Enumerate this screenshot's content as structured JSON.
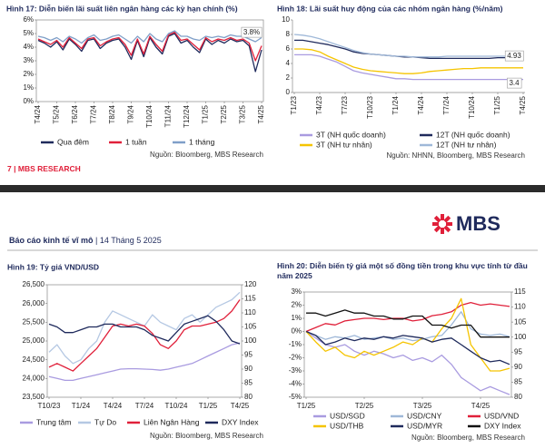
{
  "footer": {
    "page": "7",
    "separator": "|",
    "brand": "MBS RESEARCH"
  },
  "header": {
    "logo": "MBS",
    "report": "Báo cáo kinh tế vĩ mô",
    "separator": "|",
    "date": "14 Tháng 5 2025"
  },
  "chart_data": [
    {
      "type": "line",
      "title": "Hình 17: Diễn biến lãi suất liên ngân hàng các kỳ hạn chính (%)",
      "categories": [
        "T4/24",
        null,
        null,
        "T5/24",
        null,
        null,
        "T6/24",
        null,
        null,
        "T7/24",
        null,
        null,
        "T8/24",
        null,
        null,
        "T9/24",
        null,
        null,
        "T10/24",
        null,
        null,
        "T11/24",
        null,
        null,
        "T12/24",
        null,
        null,
        "T1/25",
        null,
        null,
        "T2/25",
        null,
        null,
        "T3/25",
        null,
        null,
        "T4/25"
      ],
      "ylim": [
        0,
        6
      ],
      "yticks": [
        {
          "value": 0,
          "label": "0%"
        },
        {
          "value": 1,
          "label": "1%"
        },
        {
          "value": 2,
          "label": "2%"
        },
        {
          "value": 3,
          "label": "3%"
        },
        {
          "value": 4,
          "label": "4%"
        },
        {
          "value": 5,
          "label": "5%"
        },
        {
          "value": 6,
          "label": "6%"
        }
      ],
      "series": [
        {
          "name": "Qua đêm",
          "color": "#1f2a5c",
          "values": [
            4.5,
            4.3,
            4.0,
            4.4,
            3.8,
            4.6,
            4.2,
            3.7,
            4.5,
            4.6,
            3.9,
            4.3,
            4.5,
            4.6,
            4.0,
            3.1,
            4.5,
            3.3,
            4.7,
            4.0,
            3.5,
            4.8,
            5.0,
            4.3,
            4.5,
            4.0,
            3.6,
            4.6,
            4.2,
            4.5,
            4.3,
            4.6,
            4.4,
            4.5,
            4.1,
            2.2,
            3.8
          ]
        },
        {
          "name": "1 tuần",
          "color": "#e0203a",
          "values": [
            4.6,
            4.4,
            4.2,
            4.5,
            4.0,
            4.7,
            4.3,
            3.9,
            4.6,
            4.7,
            4.1,
            4.4,
            4.6,
            4.7,
            4.2,
            3.4,
            4.6,
            3.5,
            4.8,
            4.2,
            3.7,
            4.9,
            5.1,
            4.5,
            4.6,
            4.2,
            3.8,
            4.7,
            4.4,
            4.6,
            4.5,
            4.7,
            4.5,
            4.6,
            4.3,
            3.0,
            4.1
          ]
        },
        {
          "name": "1 tháng",
          "color": "#7f9fc8",
          "values": [
            4.8,
            4.7,
            4.5,
            4.7,
            4.4,
            4.8,
            4.6,
            4.3,
            4.7,
            4.9,
            4.5,
            4.6,
            4.8,
            4.9,
            4.6,
            4.3,
            4.8,
            4.4,
            5.0,
            4.6,
            4.4,
            5.0,
            5.2,
            4.8,
            4.8,
            4.6,
            4.5,
            4.8,
            4.7,
            4.8,
            4.7,
            4.9,
            4.8,
            4.8,
            4.6,
            4.4,
            4.7
          ]
        }
      ],
      "annotations": [
        "3.8%"
      ],
      "source": "Nguồn: Bloomberg, MBS Research",
      "grid": false
    },
    {
      "type": "line",
      "title": "Hình 18: Lãi suất huy động của các nhóm ngân hàng (%/năm)",
      "categories": [
        "T1/23",
        null,
        null,
        "T4/23",
        null,
        null,
        "T7/23",
        null,
        null,
        "T10/23",
        null,
        null,
        "T1/24",
        null,
        null,
        "T4/24",
        null,
        null,
        "T7/24",
        null,
        null,
        "T10/24",
        null,
        null,
        "T1/25",
        null,
        null,
        "T4/25"
      ],
      "ylim": [
        0,
        10
      ],
      "yticks": [
        0,
        2,
        4,
        6,
        8,
        10
      ],
      "series": [
        {
          "name": "3T (NH quốc doanh)",
          "color": "#a99be0",
          "values": [
            5.2,
            5.2,
            5.2,
            5.0,
            4.6,
            4.2,
            3.6,
            3.0,
            2.7,
            2.5,
            2.3,
            2.1,
            1.9,
            1.9,
            1.8,
            1.8,
            1.8,
            1.8,
            1.8,
            1.8,
            1.8,
            1.8,
            1.8,
            1.8,
            1.8,
            1.8,
            1.8,
            1.8
          ]
        },
        {
          "name": "12T (NH quốc doanh)",
          "color": "#1f2a5c",
          "values": [
            7.2,
            7.2,
            7.0,
            6.8,
            6.6,
            6.3,
            6.0,
            5.6,
            5.4,
            5.3,
            5.2,
            5.1,
            5.0,
            4.9,
            4.9,
            4.8,
            4.7,
            4.7,
            4.7,
            4.7,
            4.7,
            4.7,
            4.7,
            4.7,
            4.8,
            4.8,
            4.9,
            4.93
          ]
        },
        {
          "name": "3T (NH tư nhân)",
          "color": "#f5c400",
          "values": [
            6.0,
            6.0,
            5.9,
            5.6,
            5.0,
            4.5,
            4.0,
            3.5,
            3.2,
            3.0,
            2.9,
            2.8,
            2.7,
            2.6,
            2.6,
            2.7,
            2.9,
            3.0,
            3.1,
            3.2,
            3.3,
            3.3,
            3.4,
            3.4,
            3.4,
            3.4,
            3.4,
            3.4
          ]
        },
        {
          "name": "12T (NH tư nhân)",
          "color": "#9fb8d8",
          "values": [
            8.0,
            7.9,
            7.7,
            7.4,
            7.0,
            6.6,
            6.2,
            5.8,
            5.5,
            5.3,
            5.2,
            5.1,
            5.0,
            5.0,
            4.9,
            4.9,
            4.9,
            4.9,
            5.0,
            5.0,
            5.0,
            5.0,
            5.0,
            5.0,
            5.0,
            5.0,
            5.0,
            5.0
          ]
        }
      ],
      "annotations": [
        "4.93",
        "3.4"
      ],
      "source": "Nguồn: NHNN, Bloomberg, MBS Research",
      "grid": false
    },
    {
      "type": "line",
      "title": "Hình 19: Tỷ giá VND/USD",
      "categories": [
        "T10/23",
        null,
        null,
        null,
        "T1/24",
        null,
        null,
        null,
        "T4/24",
        null,
        null,
        null,
        "T7/24",
        null,
        null,
        null,
        "T10/24",
        null,
        null,
        null,
        "T1/25",
        null,
        null,
        null,
        "T4/25"
      ],
      "ylim": [
        23500,
        26500
      ],
      "yticks": [
        {
          "value": 23500,
          "label": "23,500"
        },
        {
          "value": 24000,
          "label": "24,000"
        },
        {
          "value": 24500,
          "label": "24,500"
        },
        {
          "value": 25000,
          "label": "25,000"
        },
        {
          "value": 25500,
          "label": "25,500"
        },
        {
          "value": 26000,
          "label": "26,000"
        },
        {
          "value": 26500,
          "label": "26,500"
        }
      ],
      "y2lim": [
        80,
        120
      ],
      "y2ticks": [
        80,
        85,
        90,
        95,
        100,
        105,
        110,
        115,
        120
      ],
      "series": [
        {
          "name": "Trung tâm",
          "color": "#a99be0",
          "values": [
            24050,
            24000,
            23950,
            23950,
            24000,
            24050,
            24100,
            24150,
            24200,
            24250,
            24260,
            24260,
            24250,
            24240,
            24220,
            24250,
            24300,
            24350,
            24400,
            24500,
            24600,
            24700,
            24800,
            24900,
            24950
          ]
        },
        {
          "name": "Tự Do",
          "color": "#b5c8e3",
          "values": [
            24700,
            24900,
            24600,
            24400,
            24500,
            24800,
            25000,
            25500,
            25800,
            25700,
            25600,
            25500,
            25400,
            25700,
            25500,
            25400,
            25300,
            25600,
            25700,
            25500,
            25700,
            25900,
            26000,
            26100,
            26300
          ]
        },
        {
          "name": "Liên Ngân Hàng",
          "color": "#e0203a",
          "values": [
            24300,
            24400,
            24300,
            24200,
            24400,
            24600,
            24800,
            25100,
            25400,
            25450,
            25400,
            25450,
            25400,
            25200,
            24900,
            24800,
            25000,
            25300,
            25400,
            25400,
            25450,
            25500,
            25600,
            25800,
            26100
          ]
        },
        {
          "name": "DXY Index",
          "color": "#1f2a5c",
          "axis": "y2",
          "values": [
            106,
            105,
            103,
            103,
            104,
            105,
            105,
            106,
            106,
            105,
            105,
            105,
            104,
            102,
            101,
            100,
            103,
            106,
            107,
            108,
            109,
            107,
            104,
            100,
            99
          ]
        }
      ],
      "source": "Nguồn: Bloomberg, MBS Research",
      "grid": false
    },
    {
      "type": "line",
      "title": "Hình 20: Diễn biến tỷ giá một số đồng tiền trong khu vực tính từ đầu năm 2025",
      "categories": [
        "T1/25",
        null,
        null,
        null,
        null,
        null,
        "T2/25",
        null,
        null,
        null,
        null,
        null,
        "T3/25",
        null,
        null,
        null,
        null,
        null,
        "T4/25",
        null,
        null,
        null
      ],
      "ylim": [
        -5,
        3
      ],
      "yticks": [
        {
          "value": -5,
          "label": "-5%"
        },
        {
          "value": -4,
          "label": "-4%"
        },
        {
          "value": -3,
          "label": "-3%"
        },
        {
          "value": -2,
          "label": "-2%"
        },
        {
          "value": -1,
          "label": "-1%"
        },
        {
          "value": 0,
          "label": "0%"
        },
        {
          "value": 1,
          "label": "1%"
        },
        {
          "value": 2,
          "label": "2%"
        },
        {
          "value": 3,
          "label": "3%"
        }
      ],
      "y2lim": [
        80,
        115
      ],
      "y2ticks": [
        80,
        85,
        90,
        95,
        100,
        105,
        110,
        115
      ],
      "series": [
        {
          "name": "USD/SGD",
          "color": "#a99be0",
          "values": [
            0,
            -0.5,
            -1.0,
            -1.2,
            -1.0,
            -1.5,
            -1.8,
            -1.5,
            -1.7,
            -2.0,
            -1.8,
            -2.2,
            -2.0,
            -2.3,
            -1.8,
            -2.5,
            -3.5,
            -4.0,
            -4.5,
            -4.2,
            -4.5,
            -4.8
          ]
        },
        {
          "name": "USD/CNY",
          "color": "#9fb8d8",
          "values": [
            0,
            -0.3,
            -0.6,
            -0.4,
            -0.5,
            -0.3,
            -0.6,
            -0.5,
            -0.4,
            -0.6,
            -0.5,
            -0.7,
            -0.6,
            -0.4,
            -0.3,
            0.5,
            1.5,
            0.2,
            -0.2,
            -0.3,
            -0.2,
            -0.4
          ]
        },
        {
          "name": "USD/VND",
          "color": "#e0203a",
          "values": [
            0,
            0.3,
            0.6,
            0.5,
            0.8,
            0.9,
            1.0,
            1.0,
            0.9,
            1.0,
            1.0,
            0.8,
            0.9,
            1.2,
            1.3,
            1.5,
            2.0,
            2.2,
            2.0,
            2.1,
            2.0,
            1.9
          ]
        },
        {
          "name": "USD/THB",
          "color": "#f5c400",
          "values": [
            0,
            -0.8,
            -1.5,
            -1.2,
            -1.8,
            -2.0,
            -1.5,
            -1.8,
            -1.5,
            -1.2,
            -0.8,
            -1.0,
            -0.5,
            -0.8,
            0.2,
            1.0,
            2.5,
            -1.0,
            -2.0,
            -3.0,
            -3.0,
            -2.8
          ]
        },
        {
          "name": "USD/MYR",
          "color": "#1f2a5c",
          "values": [
            0,
            -0.3,
            -1.0,
            -0.8,
            -0.5,
            -0.7,
            -0.5,
            -0.6,
            -0.4,
            -0.5,
            -0.3,
            -0.4,
            -0.5,
            -0.8,
            -0.6,
            -0.5,
            -1.0,
            -1.5,
            -2.0,
            -2.3,
            -2.2,
            -2.5
          ]
        },
        {
          "name": "DXY Index",
          "color": "#111111",
          "axis": "y2",
          "values": [
            108,
            108,
            107,
            108,
            109,
            108,
            108,
            107,
            107,
            106,
            106,
            107,
            107,
            104,
            104,
            103,
            104,
            104,
            100,
            100,
            100,
            100
          ]
        }
      ],
      "source": "Nguồn: Bloomberg, MBS Research",
      "grid": false
    }
  ]
}
